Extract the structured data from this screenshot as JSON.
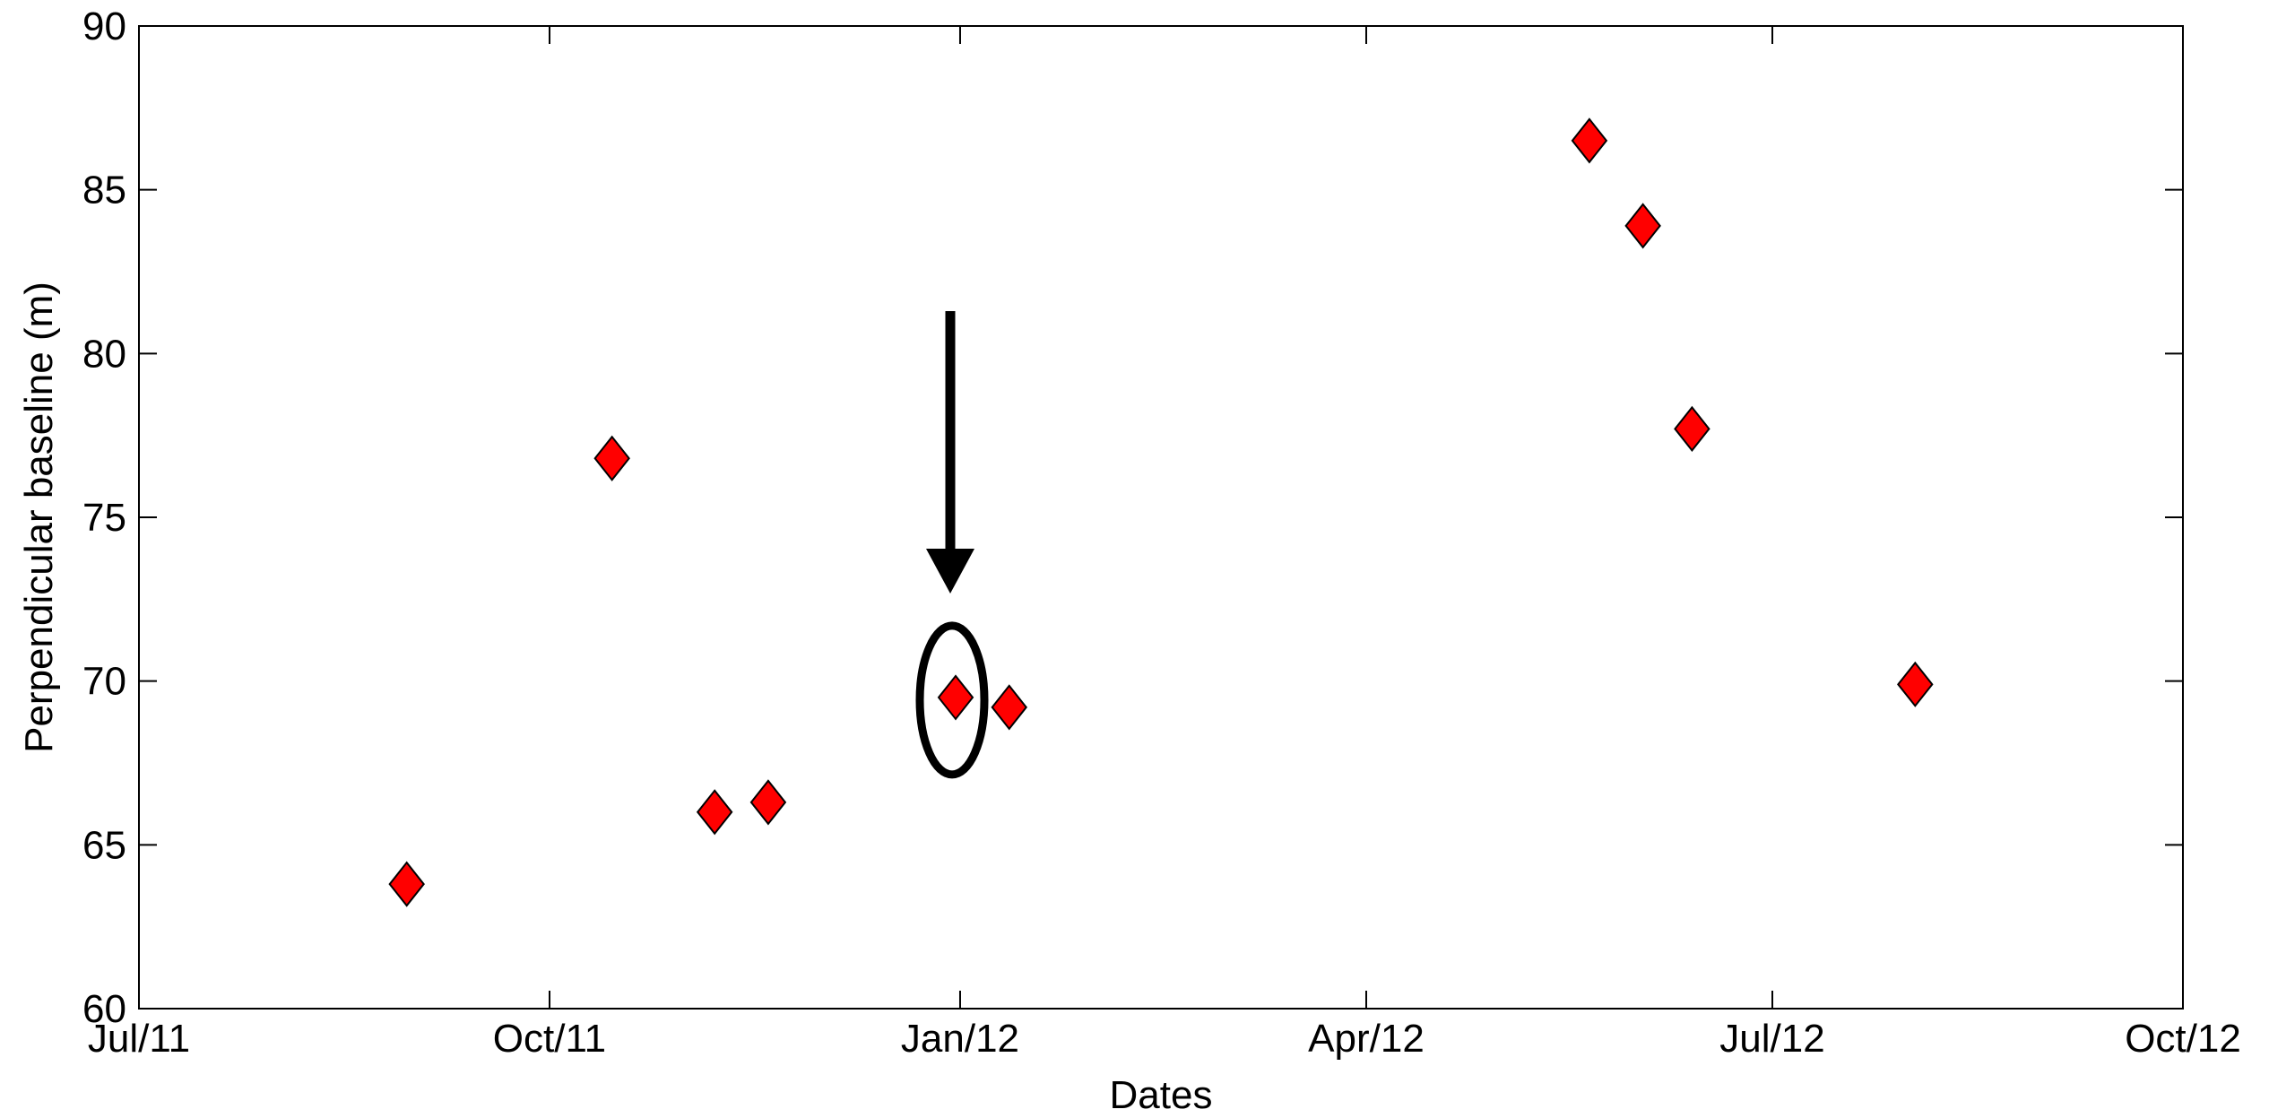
{
  "chart_data": {
    "type": "scatter",
    "title": "",
    "xlabel": "Dates",
    "ylabel": "Perpendicular baseline (m)",
    "xlim": [
      "2011-07-01",
      "2012-10-01"
    ],
    "ylim": [
      60,
      90
    ],
    "x_ticks": [
      "2011-07-01",
      "2011-10-01",
      "2012-01-01",
      "2012-04-01",
      "2012-07-01",
      "2012-10-01"
    ],
    "x_tick_labels": [
      "Jul/11",
      "Oct/11",
      "Jan/12",
      "Apr/12",
      "Jul/12",
      "Oct/12"
    ],
    "y_ticks": [
      60,
      65,
      70,
      75,
      80,
      85,
      90
    ],
    "y_tick_labels": [
      "60",
      "65",
      "70",
      "75",
      "80",
      "85",
      "90"
    ],
    "grid": false,
    "marker": "diamond",
    "marker_color": "#ff0000",
    "series": [
      {
        "points": [
          {
            "x": "2011-08-30",
            "y": 63.8
          },
          {
            "x": "2011-10-15",
            "y": 76.8
          },
          {
            "x": "2011-11-07",
            "y": 66.0
          },
          {
            "x": "2011-11-19",
            "y": 66.3
          },
          {
            "x": "2011-12-31",
            "y": 69.5
          },
          {
            "x": "2012-01-12",
            "y": 69.2
          },
          {
            "x": "2012-05-21",
            "y": 86.5
          },
          {
            "x": "2012-06-02",
            "y": 83.9
          },
          {
            "x": "2012-06-13",
            "y": 77.7
          },
          {
            "x": "2012-08-02",
            "y": 69.9
          }
        ]
      }
    ],
    "highlighted_point": {
      "x": "2011-12-31",
      "y": 69.5
    }
  }
}
